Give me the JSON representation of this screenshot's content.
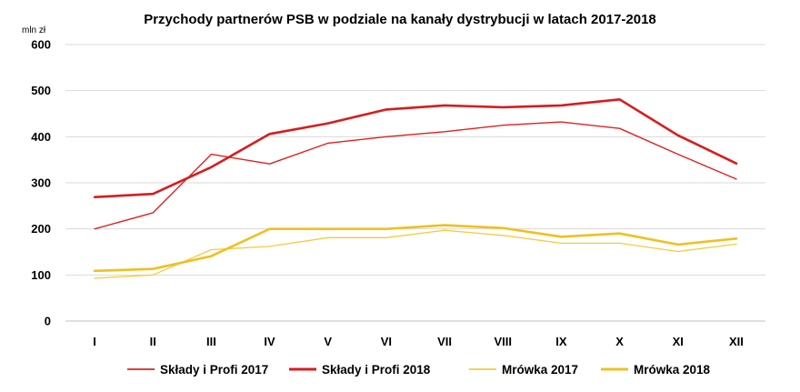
{
  "chart_data": {
    "type": "line",
    "title": "Przychody partnerów PSB w podziale na kanały dystrybucji w latach 2017-2018",
    "ylabel": "mln zł",
    "xlabel": "",
    "ylim": [
      0,
      600
    ],
    "yticks": [
      0,
      100,
      200,
      300,
      400,
      500,
      600
    ],
    "grid": true,
    "legend_position": "bottom",
    "categories": [
      "I",
      "II",
      "III",
      "IV",
      "V",
      "VI",
      "VII",
      "VIII",
      "IX",
      "X",
      "XI",
      "XII"
    ],
    "series": [
      {
        "name": "Składy i Profi 2017",
        "color": "#e02020",
        "values": [
          200,
          235,
          362,
          341,
          386,
          400,
          411,
          425,
          432,
          418,
          362,
          308
        ]
      },
      {
        "name": "Składy i Profi 2018",
        "color": "#d81c1c",
        "values": [
          269,
          276,
          334,
          406,
          429,
          459,
          468,
          464,
          468,
          481,
          403,
          342
        ]
      },
      {
        "name": "Mrówka 2017",
        "color": "#f3cc3c",
        "values": [
          93,
          100,
          155,
          162,
          181,
          181,
          197,
          186,
          169,
          169,
          151,
          167
        ]
      },
      {
        "name": "Mrówka 2018",
        "color": "#f0c020",
        "values": [
          109,
          113,
          141,
          200,
          200,
          200,
          208,
          202,
          183,
          190,
          166,
          179
        ]
      }
    ]
  }
}
